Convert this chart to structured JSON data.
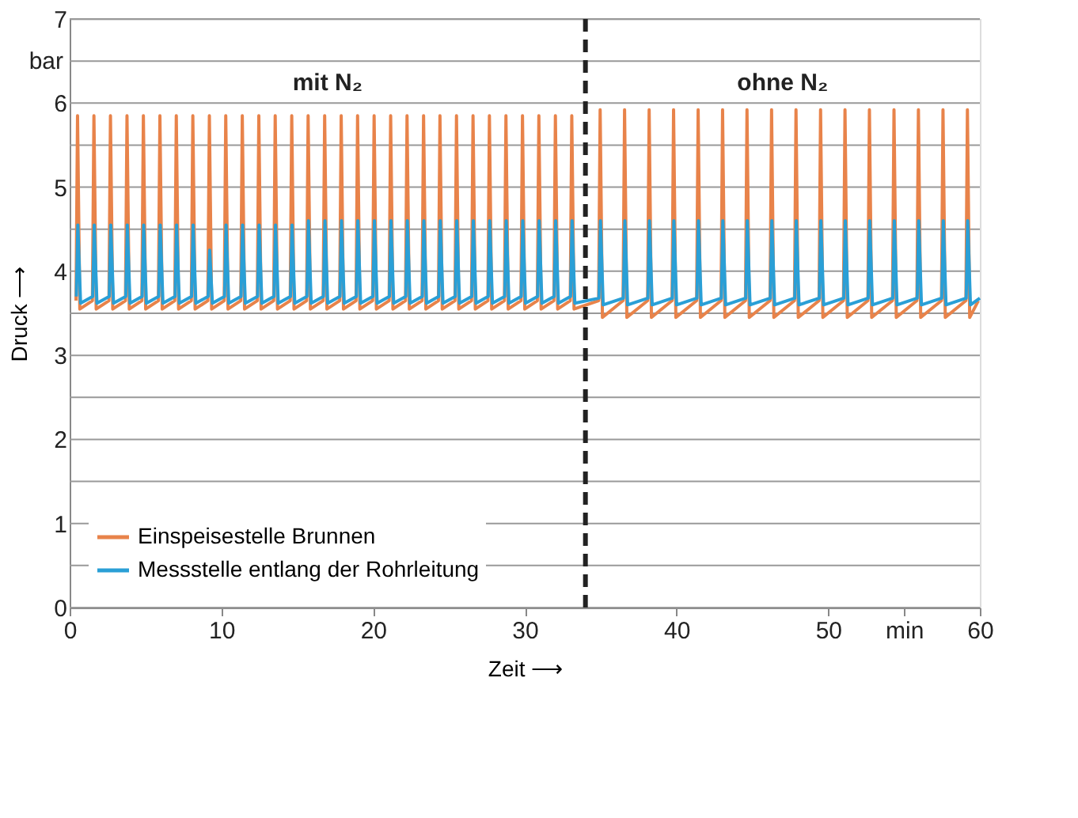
{
  "chart_data": {
    "type": "line",
    "xlabel": "Zeit ⟶",
    "ylabel": "Druck ⟶",
    "xlim": [
      0,
      60
    ],
    "xticks": [
      0,
      10,
      20,
      30,
      40,
      50,
      {
        "value": 55,
        "label": "min"
      },
      60
    ],
    "ylim": [
      0,
      7
    ],
    "yticks": [
      0,
      {
        "value": 0.5,
        "label": null
      },
      1,
      {
        "value": 1.5,
        "label": null
      },
      2,
      {
        "value": 2.5,
        "label": null
      },
      3,
      {
        "value": 3.5,
        "label": null
      },
      4,
      {
        "value": 4.5,
        "label": null
      },
      5,
      {
        "value": 5.5,
        "label": null
      },
      6,
      {
        "value": 6.5,
        "label": "bar"
      },
      7
    ],
    "grid": "y",
    "legend": "bottom left",
    "line_style": "solid",
    "marker": "none",
    "ref_lines": [
      {
        "axis": "x",
        "value": 34,
        "label": null,
        "color": "#222222",
        "line_style": "dashed"
      }
    ],
    "annotations": [
      "mit N₂",
      "ohne N₂"
    ],
    "series": [
      {
        "name": "Einspeisestelle Brunnen",
        "color": "#e8834a",
        "x": [
          0.42,
          0.52,
          0.67,
          1.5,
          1.6,
          1.75,
          2.59,
          2.69,
          2.84,
          3.68,
          3.78,
          3.93,
          4.76,
          4.86,
          5.01,
          5.85,
          5.95,
          6.1,
          6.93,
          7.03,
          7.18,
          8.02,
          8.12,
          8.27,
          9.11,
          9.21,
          9.36,
          10.19,
          10.29,
          10.44,
          11.28,
          11.38,
          11.53,
          12.37,
          12.47,
          12.62,
          13.45,
          13.55,
          13.7,
          14.54,
          14.64,
          14.79,
          15.62,
          15.72,
          15.87,
          16.71,
          16.81,
          16.96,
          17.8,
          17.9,
          18.05,
          18.88,
          18.98,
          19.13,
          19.97,
          20.07,
          20.22,
          21.06,
          21.16,
          21.31,
          22.14,
          22.24,
          22.39,
          23.23,
          23.33,
          23.48,
          24.31,
          24.41,
          24.56,
          25.4,
          25.5,
          25.65,
          26.49,
          26.59,
          26.74,
          27.57,
          27.67,
          27.82,
          28.66,
          28.76,
          28.91,
          29.75,
          29.85,
          30.0,
          30.83,
          30.93,
          31.08,
          31.92,
          32.02,
          32.17,
          33.0,
          33.1,
          33.25,
          34.87,
          34.97,
          35.12,
          36.48,
          36.58,
          36.73,
          38.1,
          38.2,
          38.35,
          39.71,
          39.81,
          39.96,
          41.33,
          41.43,
          41.58,
          42.94,
          43.04,
          43.19,
          44.55,
          44.65,
          44.8,
          46.17,
          46.27,
          46.42,
          47.78,
          47.88,
          48.03,
          49.4,
          49.5,
          49.65,
          51.01,
          51.11,
          51.26,
          52.62,
          52.72,
          52.87,
          54.24,
          54.34,
          54.49,
          55.85,
          55.95,
          56.1,
          57.47,
          57.57,
          57.72,
          59.08,
          59.18,
          59.33,
          59.9
        ],
        "values": [
          3.65,
          5.85,
          3.55,
          3.65,
          5.85,
          3.55,
          3.65,
          5.85,
          3.55,
          3.65,
          5.85,
          3.55,
          3.65,
          5.85,
          3.55,
          3.65,
          5.85,
          3.55,
          3.65,
          5.85,
          3.55,
          3.65,
          5.85,
          3.55,
          3.65,
          5.85,
          3.55,
          3.65,
          5.85,
          3.55,
          3.65,
          5.85,
          3.55,
          3.65,
          5.85,
          3.55,
          3.65,
          5.85,
          3.55,
          3.65,
          5.85,
          3.55,
          3.65,
          5.85,
          3.55,
          3.65,
          5.85,
          3.55,
          3.65,
          5.85,
          3.55,
          3.65,
          5.85,
          3.55,
          3.65,
          5.85,
          3.55,
          3.65,
          5.85,
          3.55,
          3.65,
          5.85,
          3.55,
          3.65,
          5.85,
          3.55,
          3.65,
          5.85,
          3.55,
          3.65,
          5.85,
          3.55,
          3.65,
          5.85,
          3.55,
          3.65,
          5.85,
          3.55,
          3.65,
          5.85,
          3.55,
          3.65,
          5.85,
          3.55,
          3.65,
          5.85,
          3.55,
          3.65,
          5.85,
          3.55,
          3.65,
          5.85,
          3.55,
          3.65,
          5.92,
          3.45,
          3.65,
          5.92,
          3.45,
          3.65,
          5.92,
          3.45,
          3.65,
          5.92,
          3.45,
          3.65,
          5.92,
          3.45,
          3.65,
          5.92,
          3.45,
          3.65,
          5.92,
          3.45,
          3.65,
          5.92,
          3.45,
          3.65,
          5.92,
          3.45,
          3.65,
          5.92,
          3.45,
          3.65,
          5.92,
          3.45,
          3.65,
          5.92,
          3.45,
          3.65,
          5.92,
          3.45,
          3.65,
          5.92,
          3.45,
          3.65,
          5.92,
          3.45,
          3.65,
          5.92,
          3.45,
          3.65
        ]
      },
      {
        "name": "Messstelle entlang der Rohrleitung",
        "color": "#2a9fd6",
        "x": [
          0.44,
          0.54,
          0.72,
          1.52,
          1.62,
          1.8,
          2.61,
          2.71,
          2.89,
          3.7,
          3.8,
          3.98,
          4.78,
          4.88,
          5.06,
          5.87,
          5.97,
          6.15,
          6.95,
          7.05,
          7.23,
          8.04,
          8.14,
          8.32,
          9.13,
          9.23,
          9.41,
          10.21,
          10.31,
          10.49,
          11.3,
          11.4,
          11.58,
          12.39,
          12.49,
          12.67,
          13.47,
          13.57,
          13.75,
          14.56,
          14.66,
          14.84,
          15.64,
          15.74,
          15.92,
          16.73,
          16.83,
          17.01,
          17.82,
          17.92,
          18.1,
          18.9,
          19.0,
          19.18,
          19.99,
          20.09,
          20.27,
          21.08,
          21.18,
          21.36,
          22.16,
          22.26,
          22.44,
          23.25,
          23.35,
          23.53,
          24.33,
          24.43,
          24.61,
          25.42,
          25.52,
          25.7,
          26.51,
          26.61,
          26.79,
          27.59,
          27.69,
          27.87,
          28.68,
          28.78,
          28.96,
          29.77,
          29.87,
          30.05,
          30.85,
          30.95,
          31.13,
          31.94,
          32.04,
          32.22,
          33.02,
          33.12,
          33.3,
          34.89,
          34.99,
          35.17,
          36.5,
          36.6,
          36.78,
          38.12,
          38.22,
          38.4,
          39.73,
          39.83,
          40.01,
          41.35,
          41.45,
          41.63,
          42.96,
          43.06,
          43.24,
          44.57,
          44.67,
          44.85,
          46.19,
          46.29,
          46.47,
          47.8,
          47.9,
          48.08,
          49.42,
          49.52,
          49.7,
          51.03,
          51.13,
          51.31,
          52.64,
          52.74,
          52.92,
          54.26,
          54.36,
          54.54,
          55.87,
          55.97,
          56.15,
          57.49,
          57.59,
          57.77,
          59.1,
          59.2,
          59.38,
          60
        ],
        "values": [
          3.7,
          4.55,
          3.62,
          3.7,
          4.55,
          3.62,
          3.7,
          4.55,
          3.62,
          3.7,
          4.55,
          3.62,
          3.7,
          4.55,
          3.62,
          3.7,
          4.55,
          3.62,
          3.7,
          4.55,
          3.62,
          3.7,
          4.55,
          3.62,
          3.7,
          4.25,
          3.62,
          3.7,
          4.55,
          3.62,
          3.7,
          4.55,
          3.62,
          3.7,
          4.55,
          3.62,
          3.7,
          4.55,
          3.62,
          3.7,
          4.55,
          3.62,
          3.7,
          4.6,
          3.62,
          3.7,
          4.6,
          3.62,
          3.7,
          4.6,
          3.62,
          3.7,
          4.6,
          3.62,
          3.7,
          4.6,
          3.62,
          3.7,
          4.6,
          3.62,
          3.7,
          4.6,
          3.62,
          3.7,
          4.6,
          3.62,
          3.7,
          4.6,
          3.62,
          3.7,
          4.6,
          3.62,
          3.7,
          4.6,
          3.62,
          3.7,
          4.6,
          3.62,
          3.7,
          4.6,
          3.62,
          3.7,
          4.6,
          3.62,
          3.7,
          4.6,
          3.62,
          3.7,
          4.6,
          3.62,
          3.7,
          4.6,
          3.62,
          3.68,
          4.6,
          3.6,
          3.68,
          4.6,
          3.6,
          3.68,
          4.6,
          3.6,
          3.68,
          4.6,
          3.6,
          3.68,
          4.6,
          3.6,
          3.68,
          4.6,
          3.6,
          3.68,
          4.6,
          3.6,
          3.68,
          4.6,
          3.6,
          3.68,
          4.6,
          3.6,
          3.68,
          4.6,
          3.6,
          3.68,
          4.6,
          3.6,
          3.68,
          4.6,
          3.6,
          3.68,
          4.6,
          3.6,
          3.68,
          4.6,
          3.6,
          3.68,
          4.6,
          3.6,
          3.68,
          4.6,
          3.6,
          3.68
        ]
      }
    ]
  }
}
